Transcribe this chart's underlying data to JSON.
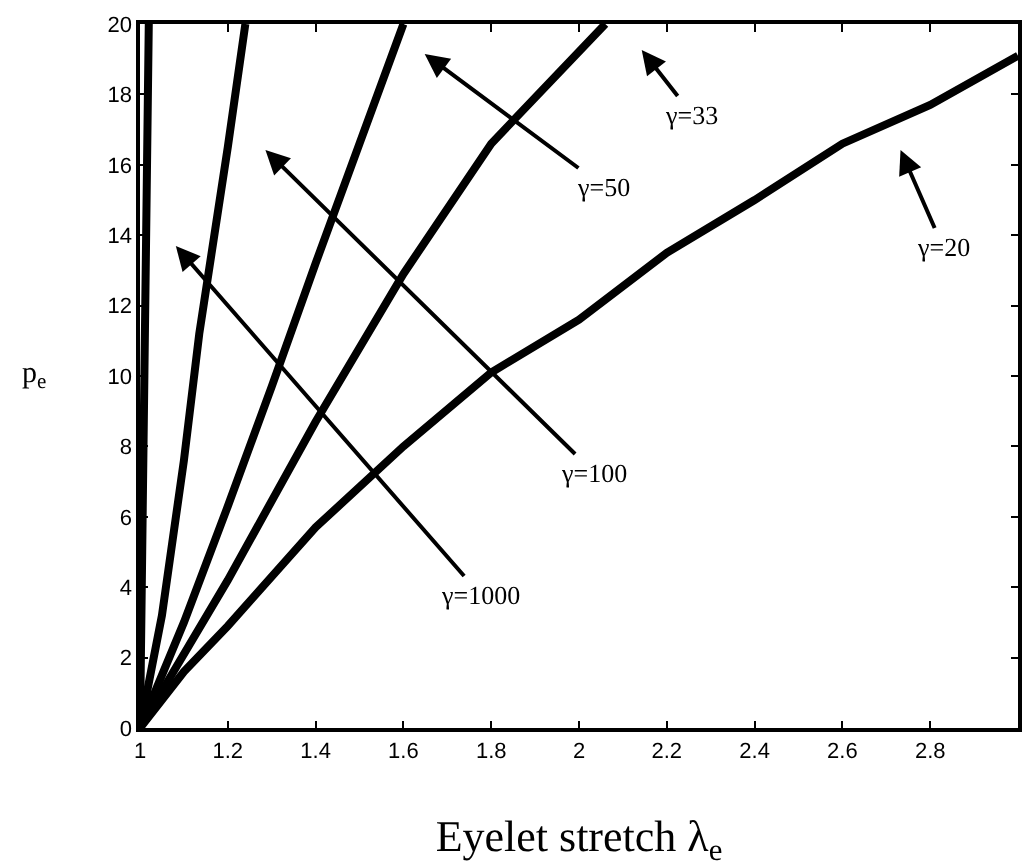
{
  "chart_data": {
    "type": "line",
    "xlabel": "Eyelet stretch λ$_{e}$",
    "ylabel": "p$_{e}$",
    "xlim": [
      1,
      3
    ],
    "ylim": [
      0,
      20
    ],
    "xticks": [
      1,
      1.2,
      1.4,
      1.6,
      1.8,
      2,
      2.2,
      2.4,
      2.6,
      2.8
    ],
    "yticks": [
      0,
      2,
      4,
      6,
      8,
      10,
      12,
      14,
      16,
      18,
      20
    ],
    "marker": "none",
    "line_style": "solid",
    "series": [
      {
        "color": "#000000",
        "x": [
          1,
          1.005,
          1.01,
          1.015,
          1.02
        ],
        "values": [
          0,
          5,
          10,
          15,
          20
        ]
      },
      {
        "color": "#000000",
        "x": [
          1,
          1.05,
          1.1,
          1.135,
          1.2,
          1.24
        ],
        "values": [
          0,
          3.2,
          7.6,
          11.2,
          16.5,
          20
        ]
      },
      {
        "color": "#000000",
        "x": [
          1,
          1.1,
          1.2,
          1.3,
          1.4,
          1.5,
          1.6
        ],
        "values": [
          0,
          3.0,
          6.3,
          9.7,
          13.2,
          16.6,
          20
        ]
      },
      {
        "color": "#000000",
        "x": [
          1,
          1.2,
          1.4,
          1.6,
          1.8,
          2.06
        ],
        "values": [
          0,
          4.2,
          8.7,
          12.9,
          16.6,
          20
        ]
      },
      {
        "color": "#000000",
        "x": [
          1,
          1.1,
          1.2,
          1.4,
          1.6,
          1.8,
          2,
          2.2,
          2.4,
          2.6,
          2.8,
          3
        ],
        "values": [
          0,
          1.6,
          2.9,
          5.7,
          8.0,
          10.1,
          11.6,
          13.5,
          15.0,
          16.6,
          17.7,
          19.1
        ]
      }
    ],
    "annotations": [
      "γ=1000",
      "γ=100",
      "γ=50",
      "γ=33",
      "γ=20"
    ]
  }
}
